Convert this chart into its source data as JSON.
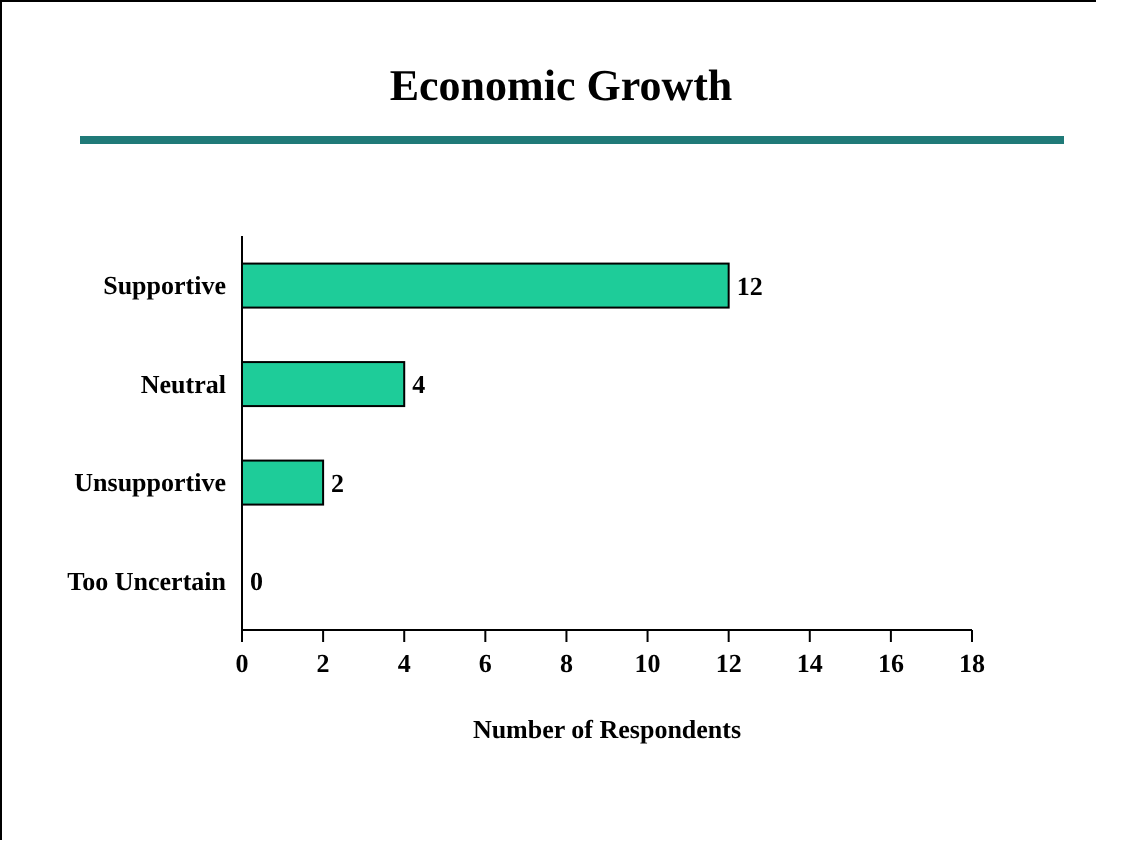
{
  "chart_data": {
    "type": "bar",
    "orientation": "horizontal",
    "title": "Economic Growth",
    "xlabel": "Number of Respondents",
    "categories": [
      "Supportive",
      "Neutral",
      "Unsupportive",
      "Too Uncertain"
    ],
    "values": [
      12,
      4,
      2,
      0
    ],
    "color": "#1ecc99",
    "xlim": [
      0,
      18
    ],
    "xticks": [
      0,
      2,
      4,
      6,
      8,
      10,
      12,
      14,
      16,
      18
    ],
    "grid": false,
    "data_labels": true
  }
}
